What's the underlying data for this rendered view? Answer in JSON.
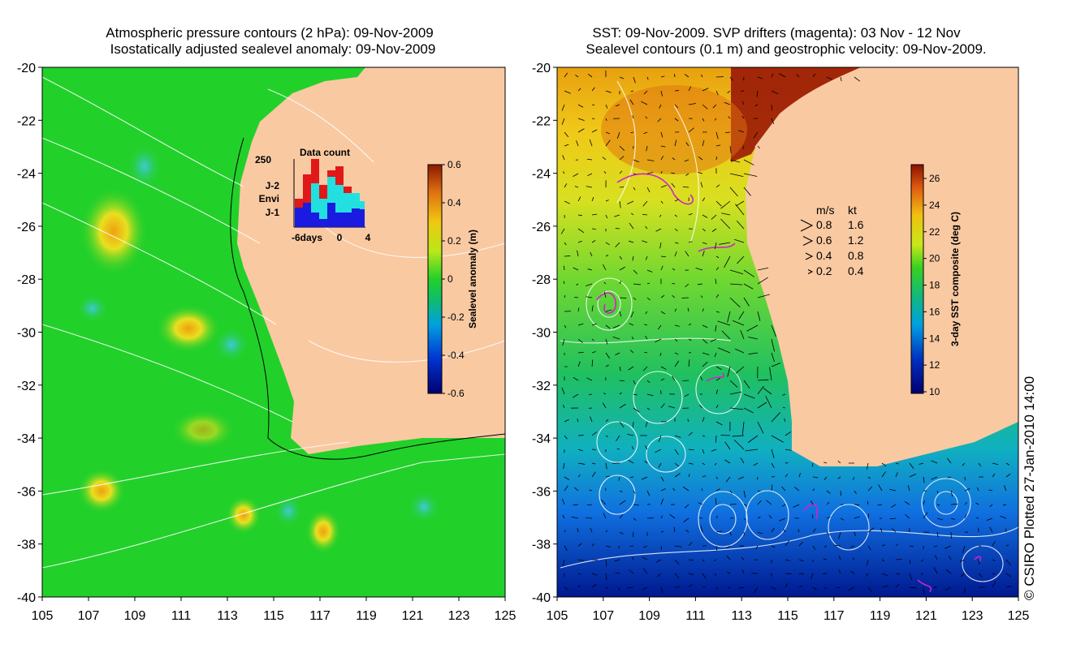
{
  "left_panel": {
    "title_line1": "Atmospheric pressure contours (2 hPa): 09-Nov-2009",
    "title_line2": "Isostatically adjusted sealevel anomaly: 09-Nov-2009",
    "y_ticks": [
      "-20",
      "-22",
      "-24",
      "-26",
      "-28",
      "-30",
      "-32",
      "-34",
      "-36",
      "-38",
      "-40"
    ],
    "x_ticks": [
      "105",
      "107",
      "109",
      "111",
      "113",
      "115",
      "117",
      "119",
      "121",
      "123",
      "125"
    ],
    "colorbar": {
      "label": "Sealevel anomaly (m)",
      "ticks": [
        "0.6",
        "0.4",
        "0.2",
        "0",
        "-0.2",
        "-0.4",
        "-0.6"
      ]
    },
    "data_count": {
      "title": "Data count",
      "max_label": "250",
      "x_left": "-6days",
      "x_mid": "0",
      "x_right": "4",
      "missions": [
        {
          "name": "J-2",
          "color": "#e01818"
        },
        {
          "name": "Envi",
          "color": "#22e0e0"
        },
        {
          "name": "J-1",
          "color": "#1a1ae0"
        }
      ]
    }
  },
  "right_panel": {
    "title_line1": "SST: 09-Nov-2009. SVP drifters (magenta): 03 Nov - 12 Nov",
    "title_line2": "Sealevel contours (0.1 m) and geostrophic velocity: 09-Nov-2009.",
    "y_ticks": [
      "-20",
      "-22",
      "-24",
      "-26",
      "-28",
      "-30",
      "-32",
      "-34",
      "-36",
      "-38",
      "-40"
    ],
    "x_ticks": [
      "105",
      "107",
      "109",
      "111",
      "113",
      "115",
      "117",
      "119",
      "121",
      "123",
      "125"
    ],
    "colorbar": {
      "label": "3-day SST composite (deg C)",
      "ticks": [
        "26",
        "24",
        "22",
        "20",
        "18",
        "16",
        "14",
        "12",
        "10"
      ]
    },
    "velocity_legend": {
      "header_ms": "m/s",
      "header_kt": "kt",
      "rows": [
        {
          "ms": "0.8",
          "kt": "1.6"
        },
        {
          "ms": "0.6",
          "kt": "1.2"
        },
        {
          "ms": "0.4",
          "kt": "0.8"
        },
        {
          "ms": "0.2",
          "kt": "0.4"
        }
      ]
    }
  },
  "credit": "© CSIRO Plotted 27-Jan-2010 14:00",
  "colors": {
    "land": "#f9c9a2",
    "ocean_anomaly": "#22d02a",
    "drifter": "#d020d0"
  }
}
